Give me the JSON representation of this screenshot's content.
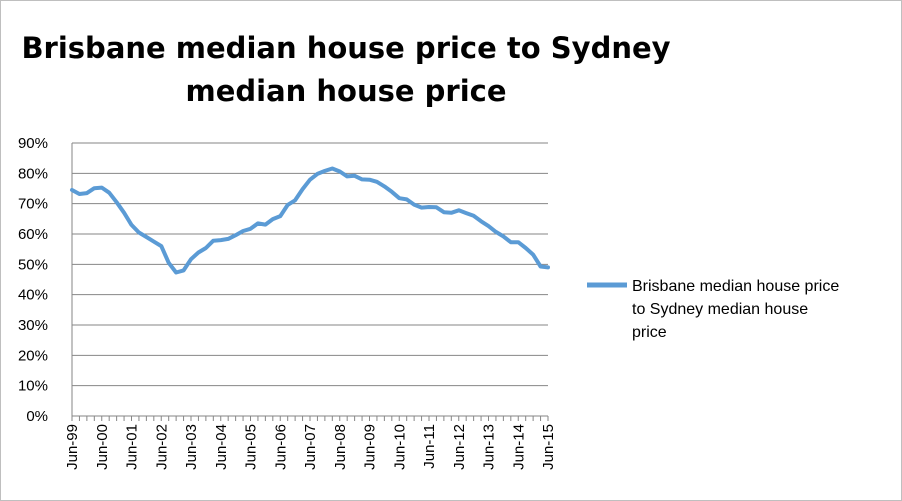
{
  "chart_data": {
    "type": "line",
    "title_lines": [
      "Brisbane median house price to Sydney",
      "median house price"
    ],
    "ylim": [
      0,
      90
    ],
    "y_ticks": [
      "0%",
      "10%",
      "20%",
      "30%",
      "40%",
      "50%",
      "60%",
      "70%",
      "80%",
      "90%"
    ],
    "x_ticks": [
      "Jun-99",
      "Jun-00",
      "Jun-01",
      "Jun-02",
      "Jun-03",
      "Jun-04",
      "Jun-05",
      "Jun-06",
      "Jun-07",
      "Jun-08",
      "Jun-09",
      "Jun-10",
      "Jun-11",
      "Jun-12",
      "Jun-13",
      "Jun-14",
      "Jun-15"
    ],
    "grid": "horizontal",
    "legend_position": "right",
    "series": [
      {
        "name": "Brisbane median house price to Sydney median house price",
        "legend_lines": [
          "Brisbane median house price",
          "to Sydney median house",
          "price"
        ],
        "color": "#5b9bd5",
        "x": [
          1999.5,
          1999.75,
          2000.0,
          2000.25,
          2000.5,
          2000.75,
          2001.0,
          2001.25,
          2001.5,
          2001.75,
          2002.0,
          2002.25,
          2002.5,
          2002.75,
          2003.0,
          2003.25,
          2003.5,
          2003.75,
          2004.0,
          2004.25,
          2004.5,
          2004.75,
          2005.0,
          2005.25,
          2005.5,
          2005.75,
          2006.0,
          2006.25,
          2006.5,
          2006.75,
          2007.0,
          2007.25,
          2007.5,
          2007.75,
          2008.0,
          2008.25,
          2008.5,
          2008.75,
          2009.0,
          2009.25,
          2009.5,
          2009.75,
          2010.0,
          2010.25,
          2010.5,
          2010.75,
          2011.0,
          2011.25,
          2011.5,
          2011.75,
          2012.0,
          2012.25,
          2012.5,
          2012.75,
          2013.0,
          2013.25,
          2013.5,
          2013.75,
          2014.0,
          2014.25,
          2014.5,
          2014.75,
          2015.0,
          2015.25,
          2015.5
        ],
        "values": [
          74.5,
          73.2,
          73.5,
          75.1,
          75.3,
          73.6,
          70.5,
          67.0,
          63.0,
          60.5,
          59.0,
          57.5,
          56.0,
          50.5,
          47.3,
          48.0,
          51.7,
          53.9,
          55.4,
          57.8,
          58.0,
          58.4,
          59.6,
          61.0,
          61.7,
          63.5,
          63.1,
          64.9,
          65.9,
          69.6,
          71.1,
          74.8,
          77.9,
          79.8,
          80.8,
          81.6,
          80.6,
          79.0,
          79.2,
          78.0,
          77.9,
          77.2,
          75.7,
          73.9,
          71.8,
          71.4,
          69.7,
          68.7,
          68.9,
          68.8,
          67.2,
          67.0,
          67.8,
          66.9,
          66.0,
          64.2,
          62.6,
          60.7,
          59.2,
          57.3,
          57.3,
          55.4,
          53.2,
          49.3,
          49.0
        ]
      }
    ]
  }
}
